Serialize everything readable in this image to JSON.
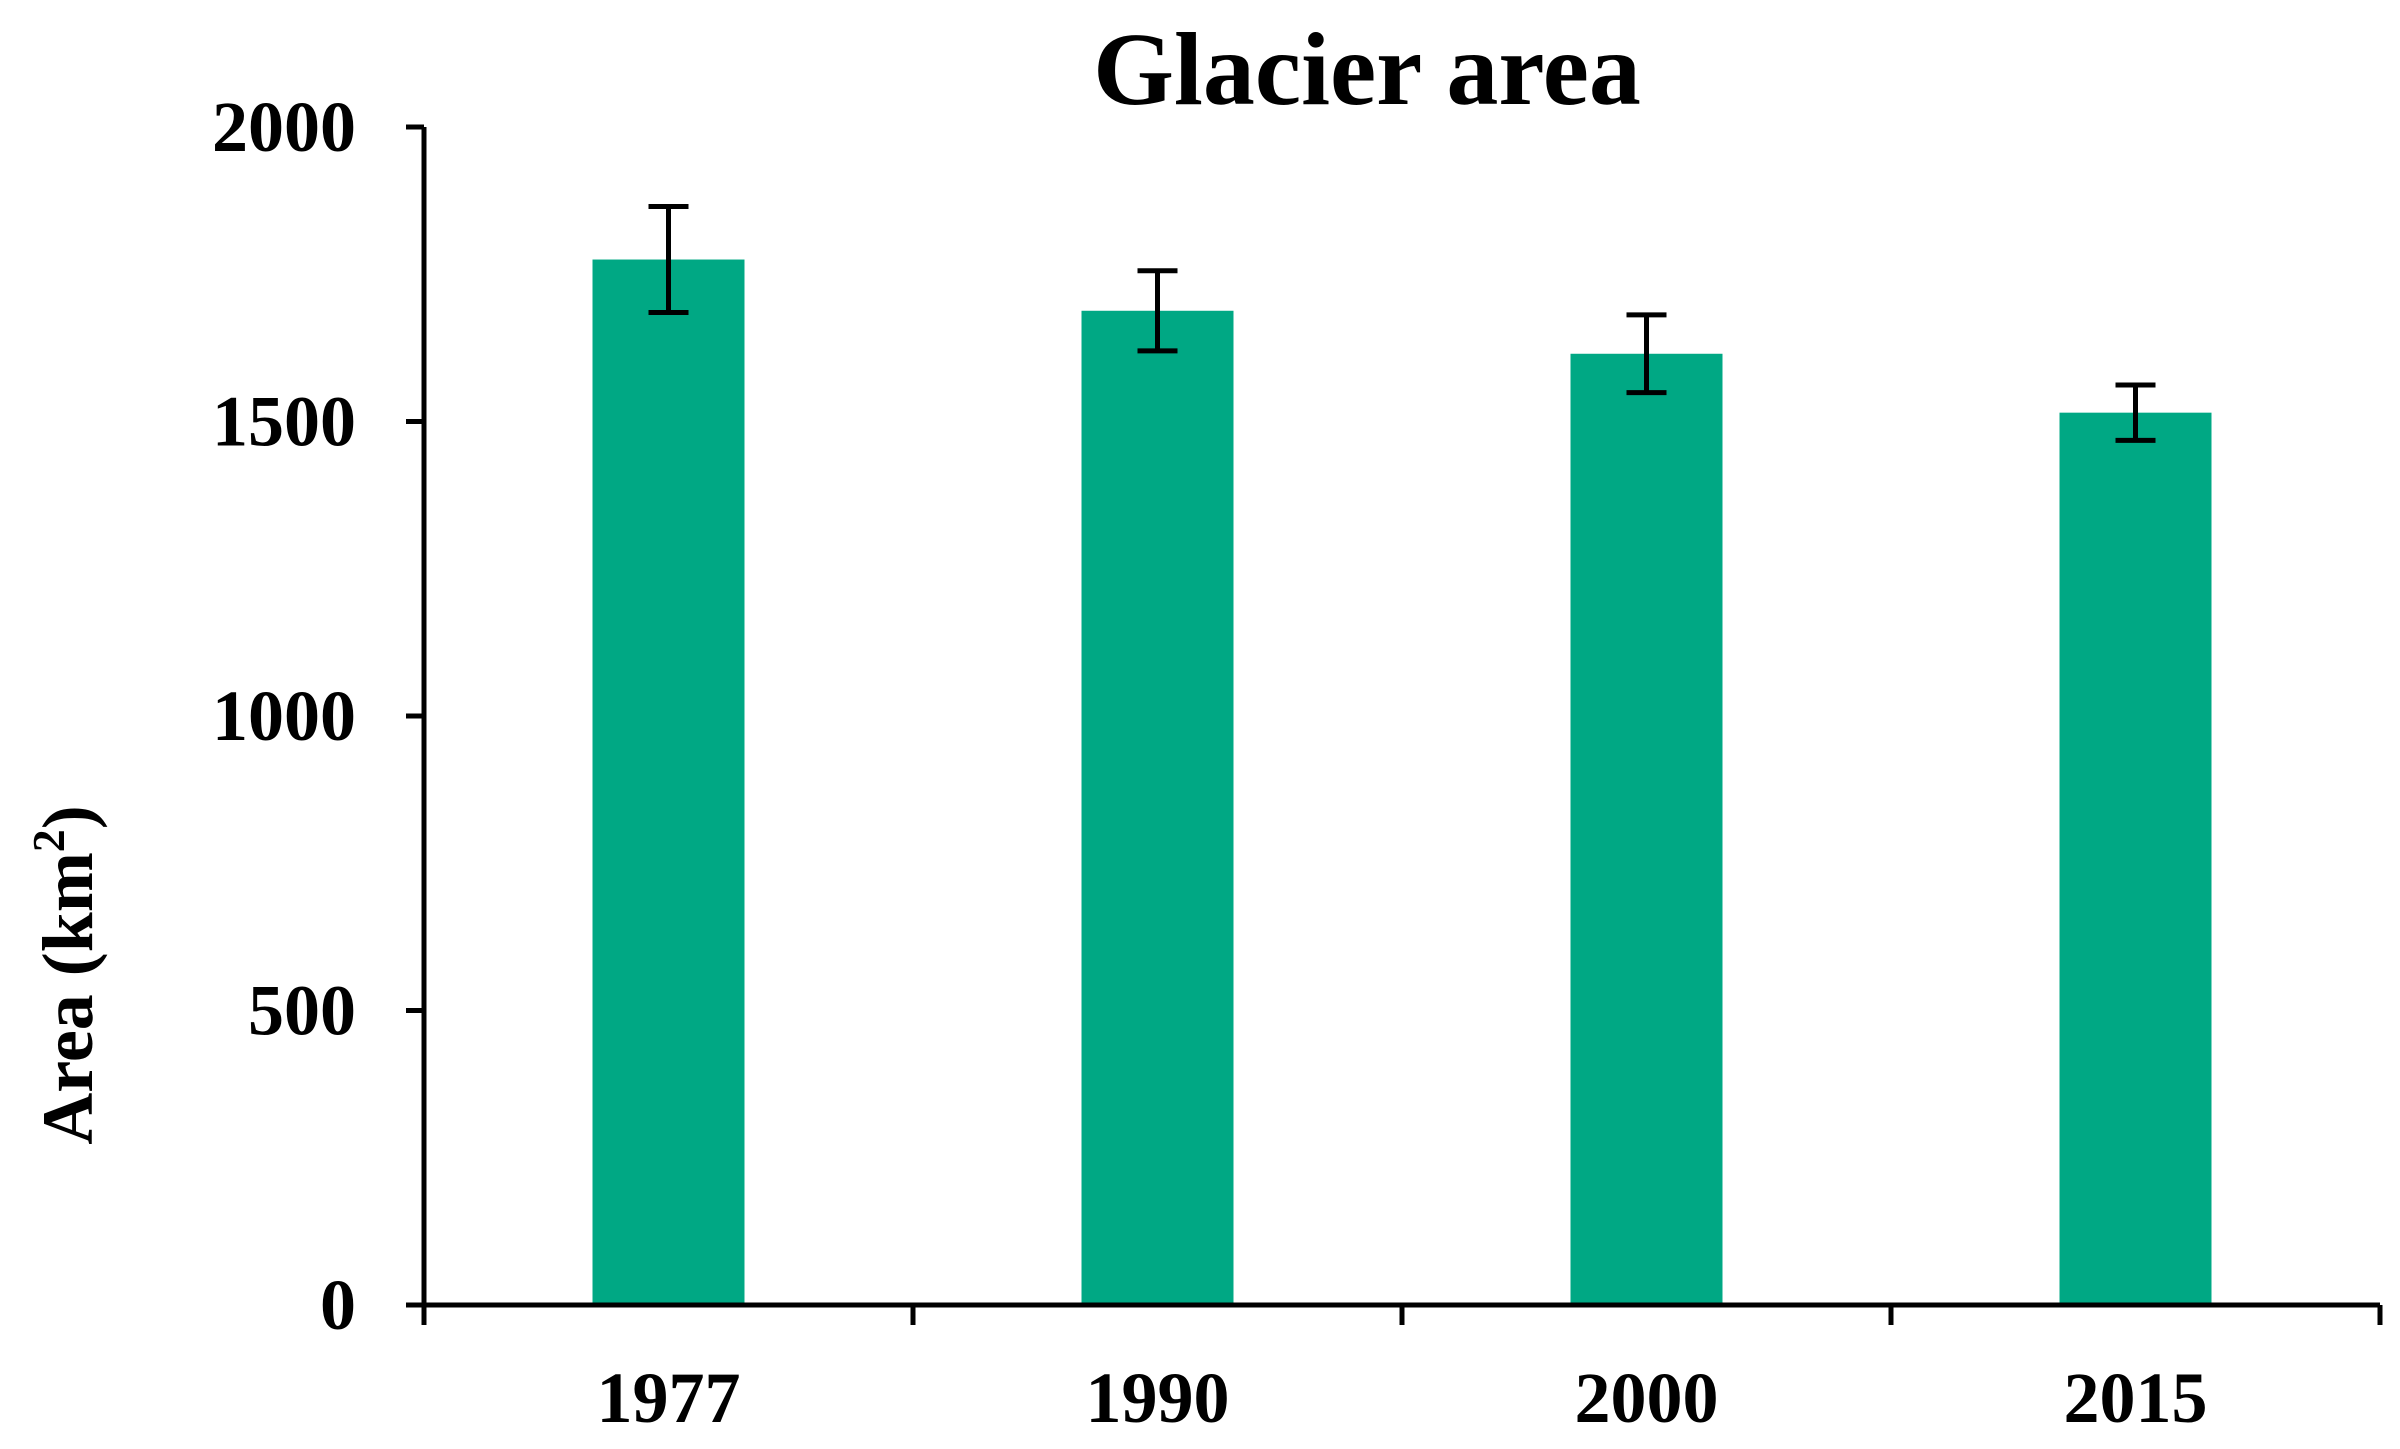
{
  "chart_data": {
    "type": "bar",
    "title": "Glacier area",
    "xlabel": "",
    "ylabel": "Area (km",
    "ylabel_superscript": "2",
    "ylabel_suffix": ")",
    "categories": [
      "1977",
      "1990",
      "2000",
      "2015"
    ],
    "values": [
      1775,
      1688,
      1615,
      1515
    ],
    "error": [
      90,
      68,
      66,
      47
    ],
    "ylim": [
      0,
      2000
    ],
    "yticks": [
      0,
      500,
      1000,
      1500,
      2000
    ],
    "ytick_labels": [
      "0",
      "500",
      "1000",
      "1500",
      "2000"
    ],
    "grid": false,
    "bar_color": "#00a884",
    "error_color": "#000000"
  }
}
